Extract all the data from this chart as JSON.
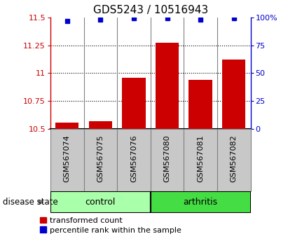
{
  "title": "GDS5243 / 10516943",
  "samples": [
    "GSM567074",
    "GSM567075",
    "GSM567076",
    "GSM567080",
    "GSM567081",
    "GSM567082"
  ],
  "red_values": [
    10.56,
    10.57,
    10.96,
    11.27,
    10.94,
    11.12
  ],
  "blue_values": [
    97,
    98,
    99,
    99,
    98,
    99
  ],
  "ylim_left": [
    10.5,
    11.5
  ],
  "ylim_right": [
    0,
    100
  ],
  "yticks_left": [
    10.5,
    10.75,
    11.0,
    11.25,
    11.5
  ],
  "ytick_labels_left": [
    "10.5",
    "10.75",
    "11",
    "11.25",
    "11.5"
  ],
  "yticks_right": [
    0,
    25,
    50,
    75,
    100
  ],
  "ytick_labels_right": [
    "0",
    "25",
    "50",
    "75",
    "100%"
  ],
  "grid_lines": [
    10.75,
    11.0,
    11.25
  ],
  "bar_color": "#CC0000",
  "dot_color": "#0000CC",
  "bar_bottom": 10.5,
  "ctrl_color": "#AAFFAA",
  "arth_color": "#44DD44",
  "gray_box_color": "#C8C8C8",
  "disease_state_label": "disease state",
  "legend_red": "transformed count",
  "legend_blue": "percentile rank within the sample",
  "title_fontsize": 11,
  "sample_fontsize": 8,
  "tick_fontsize": 8,
  "group_fontsize": 9,
  "legend_fontsize": 8
}
